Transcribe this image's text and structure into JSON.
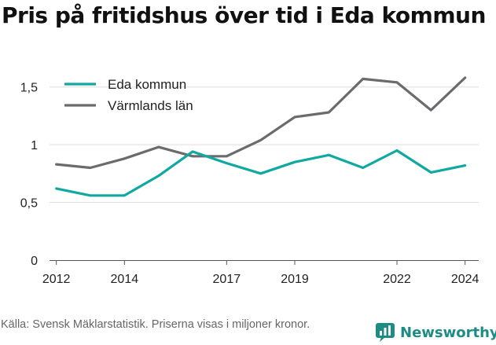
{
  "title": "Pris på fritidshus över tid i Eda kommun",
  "source": "Källa: Svensk Mäklarstatistik. Priserna visas i miljoner kronor.",
  "brand": {
    "name": "Newsworthy",
    "color": "#1d8c84",
    "icon": "newsworthy-logo-icon"
  },
  "chart_data": {
    "type": "line",
    "x": [
      2012,
      2013,
      2014,
      2015,
      2016,
      2017,
      2018,
      2019,
      2020,
      2021,
      2022,
      2023,
      2024
    ],
    "x_ticks": [
      "2012",
      "2014",
      "2017",
      "2019",
      "2022",
      "2024"
    ],
    "y_ticks": [
      "0",
      "0,5",
      "1",
      "1,5"
    ],
    "ylim": [
      0,
      1.6
    ],
    "grid": true,
    "legend_position": "top-left",
    "series": [
      {
        "name": "Eda kommun",
        "color": "#10a8a0",
        "values": [
          0.62,
          0.56,
          0.56,
          0.73,
          0.94,
          0.84,
          0.75,
          0.85,
          0.91,
          0.8,
          0.95,
          0.76,
          0.82
        ]
      },
      {
        "name": "Värmlands län",
        "color": "#6b6b6f",
        "values": [
          0.83,
          0.8,
          0.88,
          0.98,
          0.9,
          0.9,
          1.04,
          1.24,
          1.28,
          1.57,
          1.54,
          1.3,
          1.58
        ]
      }
    ]
  }
}
